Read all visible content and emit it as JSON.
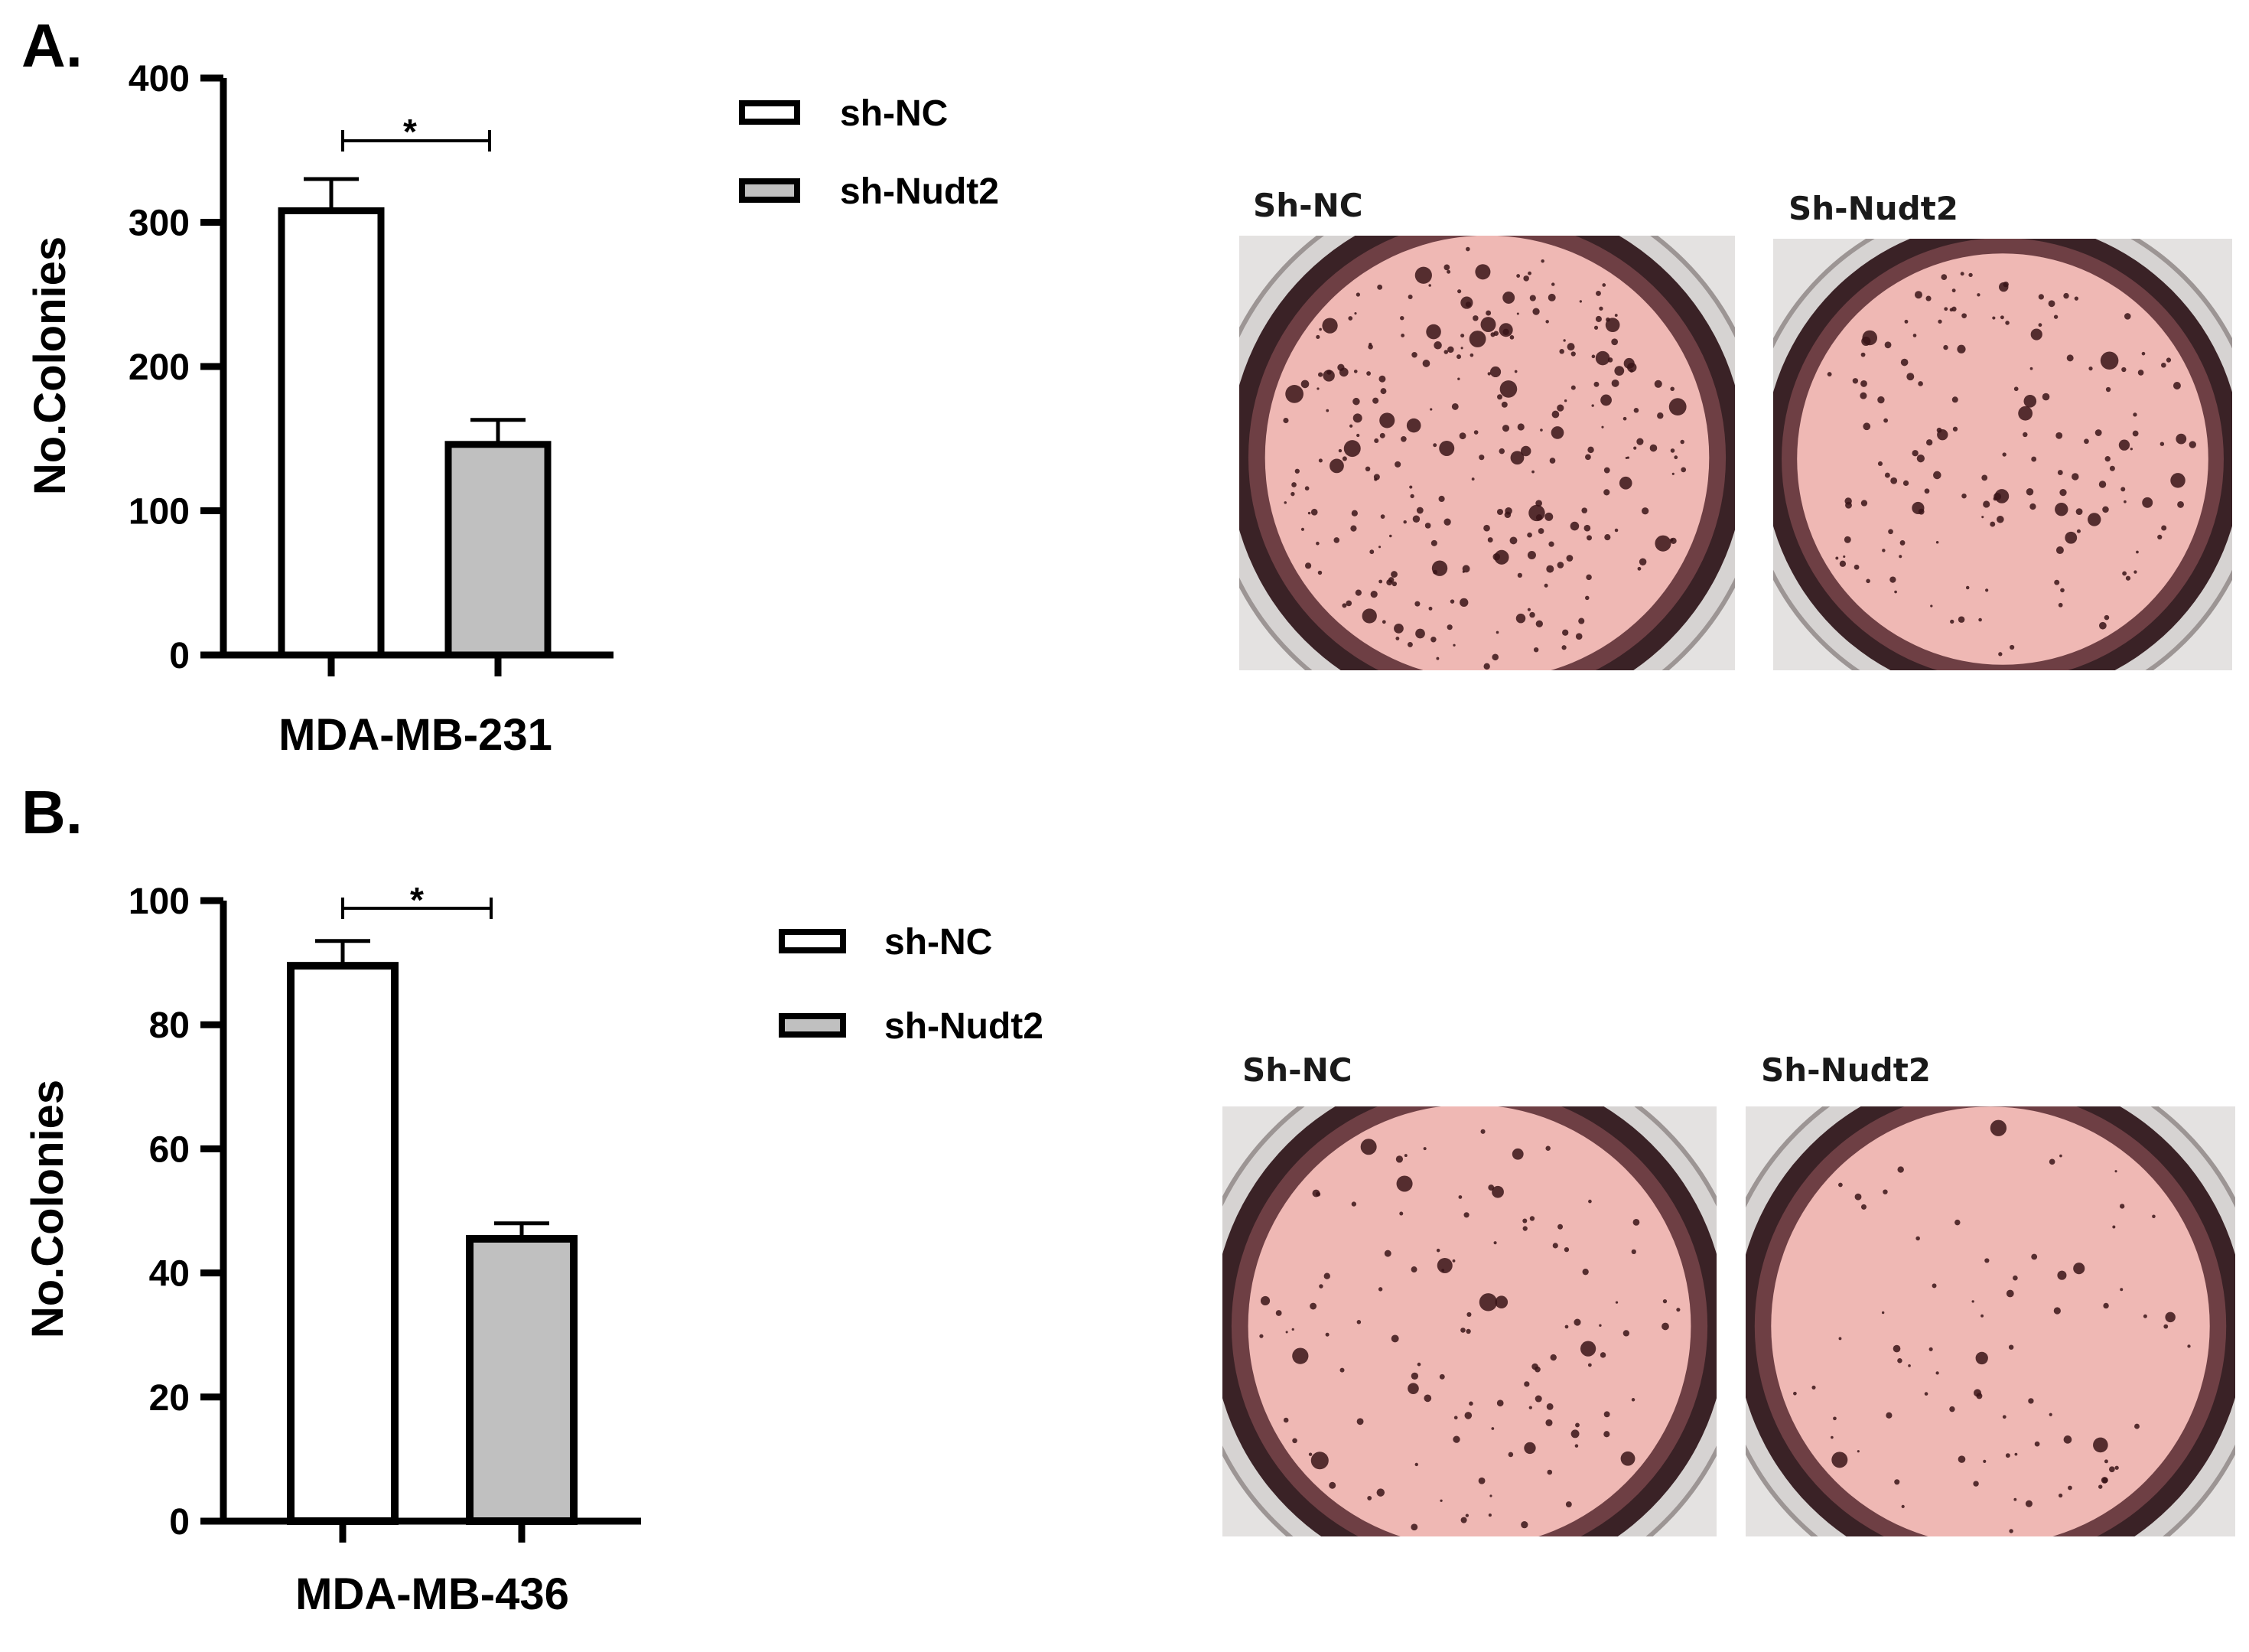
{
  "panel_labels": {
    "a": "A.",
    "b": "B."
  },
  "colors": {
    "sh_nc_fill": "#ffffff",
    "sh_nudt2_fill": "#c0c0c0",
    "stroke": "#000000",
    "plate_rim": "#3a2226",
    "plate_inner": "#6e3f44",
    "agar": "#efb8b4",
    "colony": "#3a1418"
  },
  "chart_data": [
    {
      "type": "bar",
      "panel": "A.",
      "categories": [
        "MDA-MB-231"
      ],
      "series": [
        {
          "name": "sh-NC",
          "values": [
            308
          ],
          "error": [
            22
          ]
        },
        {
          "name": "sh-Nudt2",
          "values": [
            146
          ],
          "error": [
            17
          ]
        }
      ],
      "yticks": [
        "0",
        "100",
        "200",
        "300",
        "400"
      ],
      "ylim": [
        0,
        400
      ],
      "ylabel": "No.Colonies",
      "xlabel": "MDA-MB-231",
      "significance": "*",
      "legend": {
        "placement": "right",
        "items": [
          "sh-NC",
          "sh-Nudt2"
        ]
      }
    },
    {
      "type": "bar",
      "panel": "B.",
      "categories": [
        "MDA-MB-436"
      ],
      "series": [
        {
          "name": "sh-NC",
          "values": [
            89.5
          ],
          "error": [
            4
          ]
        },
        {
          "name": "sh-Nudt2",
          "values": [
            45.5
          ],
          "error": [
            2.5
          ]
        }
      ],
      "yticks": [
        "0",
        "20",
        "40",
        "60",
        "80",
        "100"
      ],
      "ylim": [
        0,
        100
      ],
      "ylabel": "No.Colonies",
      "xlabel": "MDA-MB-436",
      "significance": "*",
      "legend": {
        "placement": "right",
        "items": [
          "sh-NC",
          "sh-Nudt2"
        ]
      }
    }
  ],
  "photos": {
    "a": [
      {
        "label": "Sh-NC"
      },
      {
        "label": "Sh-Nudt2"
      }
    ],
    "b": [
      {
        "label": "Sh-NC"
      },
      {
        "label": "Sh-Nudt2"
      }
    ]
  }
}
